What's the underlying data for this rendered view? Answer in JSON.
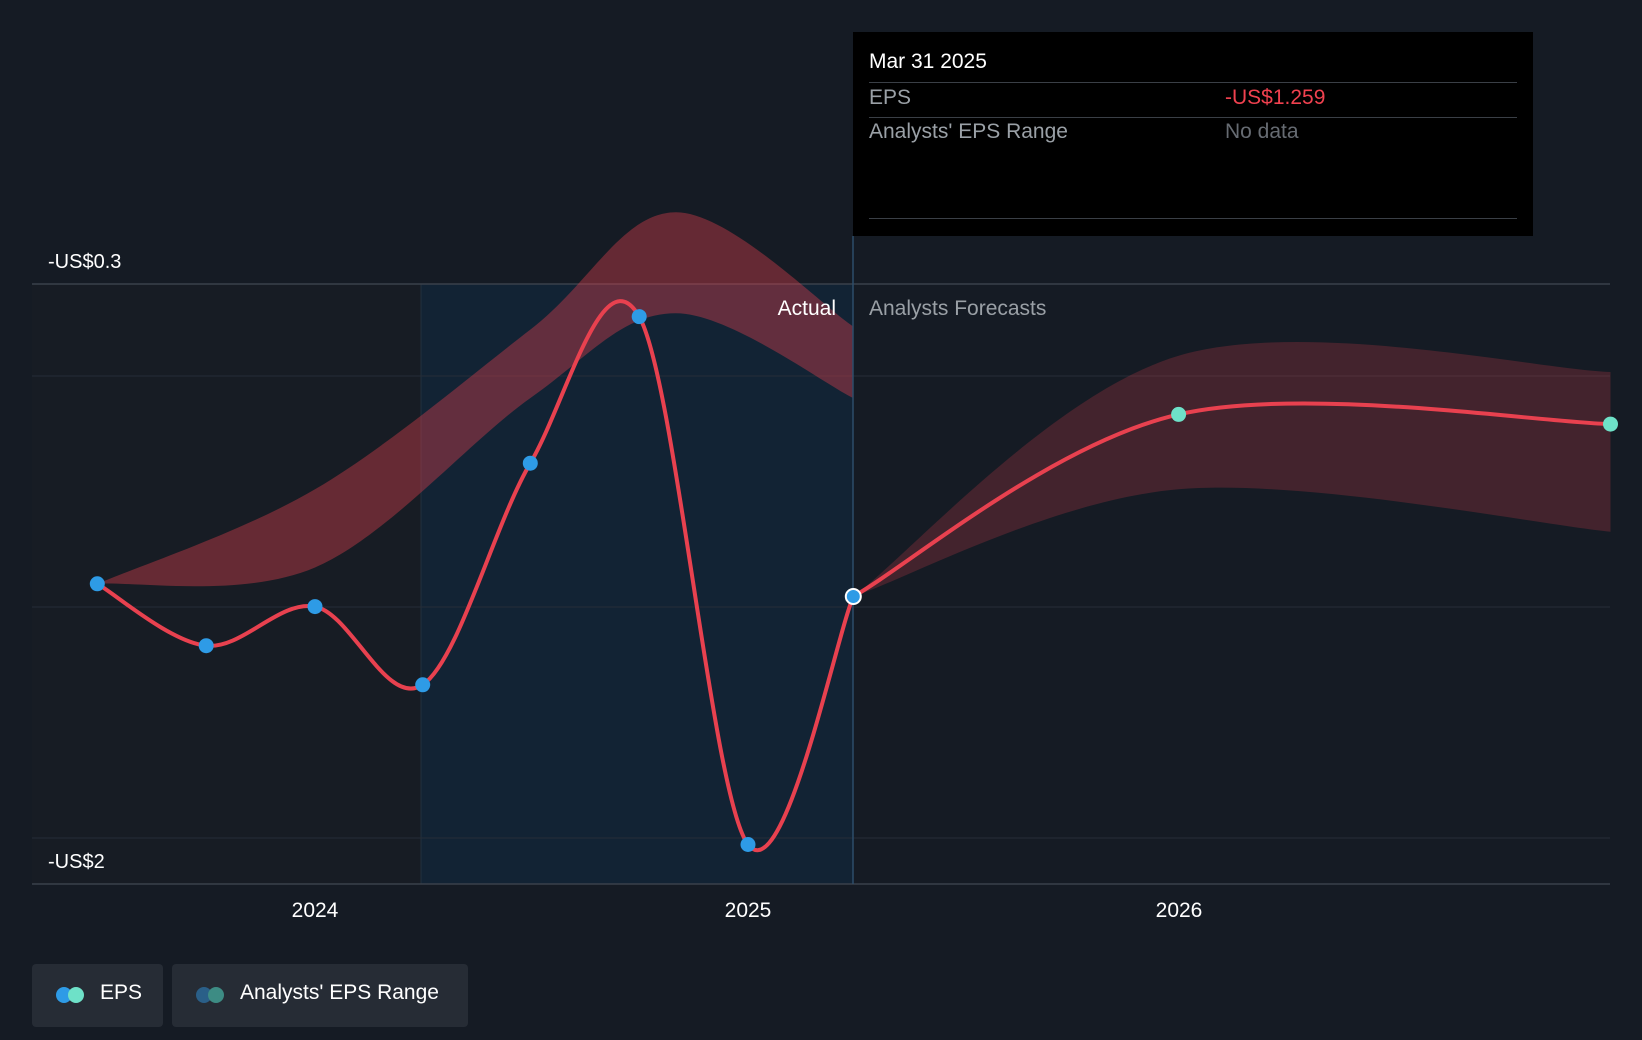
{
  "chart_data": {
    "type": "line",
    "title": "",
    "xlabel": "",
    "ylabel": "",
    "x_ticks": [
      "2024",
      "2025",
      "2026"
    ],
    "y_ticks": [
      "-US$0.3",
      "-US$2"
    ],
    "ylim": [
      -2.0,
      -0.3
    ],
    "section_labels": {
      "actual": "Actual",
      "forecast": "Analysts Forecasts"
    },
    "series": [
      {
        "name": "EPS",
        "kind": "actual",
        "color": "#e8414f",
        "points": [
          {
            "x": "2023-07-01",
            "y": -1.22
          },
          {
            "x": "2023-10-01",
            "y": -1.41
          },
          {
            "x": "2024-01-01",
            "y": -1.29
          },
          {
            "x": "2024-04-01",
            "y": -1.53
          },
          {
            "x": "2024-07-01",
            "y": -0.85
          },
          {
            "x": "2024-10-01",
            "y": -0.4
          },
          {
            "x": "2025-01-01",
            "y": -2.02
          },
          {
            "x": "2025-03-31",
            "y": -1.259
          }
        ]
      },
      {
        "name": "EPS",
        "kind": "forecast",
        "color": "#e8414f",
        "points": [
          {
            "x": "2025-03-31",
            "y": -1.259
          },
          {
            "x": "2025-12-31",
            "y": -0.7
          },
          {
            "x": "2026-12-31",
            "y": -0.73
          }
        ]
      }
    ],
    "bands": [
      {
        "name": "Analysts' EPS Range",
        "kind": "actual",
        "upper": [
          {
            "x": "2023-07-01",
            "y": -1.22
          },
          {
            "x": "2024-01-01",
            "y": -0.93
          },
          {
            "x": "2024-07-01",
            "y": -0.44
          },
          {
            "x": "2024-11-01",
            "y": -0.08
          },
          {
            "x": "2025-03-31",
            "y": -0.43
          }
        ],
        "lower": [
          {
            "x": "2023-07-01",
            "y": -1.22
          },
          {
            "x": "2024-01-01",
            "y": -1.17
          },
          {
            "x": "2024-07-01",
            "y": -0.65
          },
          {
            "x": "2024-11-01",
            "y": -0.39
          },
          {
            "x": "2025-03-31",
            "y": -0.65
          }
        ]
      },
      {
        "name": "Analysts' EPS Range",
        "kind": "forecast",
        "upper": [
          {
            "x": "2025-03-31",
            "y": -1.259
          },
          {
            "x": "2025-12-31",
            "y": -0.52
          },
          {
            "x": "2026-12-31",
            "y": -0.57
          }
        ],
        "lower": [
          {
            "x": "2025-03-31",
            "y": -1.259
          },
          {
            "x": "2025-12-31",
            "y": -0.93
          },
          {
            "x": "2026-12-31",
            "y": -1.06
          }
        ]
      }
    ],
    "highlight": {
      "from": "2024-04-01",
      "to": "2025-03-31"
    },
    "colors": {
      "point": "#2e9be6",
      "forecast_point": "#6ee1c8",
      "band": "#e8414f"
    }
  },
  "tooltip": {
    "date": "Mar 31 2025",
    "rows": [
      {
        "label": "EPS",
        "value": "-US$1.259",
        "color": "#f0414f"
      },
      {
        "label": "Analysts' EPS Range",
        "value": "No data",
        "color": "#666b72"
      }
    ]
  },
  "legend": [
    {
      "label": "EPS",
      "colors": [
        "#2e9be6",
        "#6ee1c8"
      ]
    },
    {
      "label": "Analysts' EPS Range",
      "colors": [
        "#2a5f88",
        "#3d8c84"
      ]
    }
  ]
}
